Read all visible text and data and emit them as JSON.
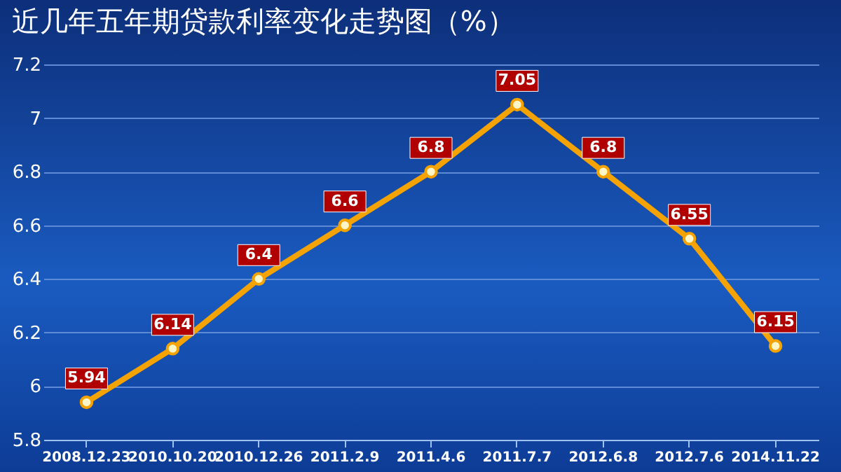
{
  "chart_data": {
    "type": "line",
    "title": "近几年五年期贷款利率变化走势图（%）",
    "categories": [
      "2008.12.23",
      "2010.10.20",
      "2010.12.26",
      "2011.2.9",
      "2011.4.6",
      "2011.7.7",
      "2012.6.8",
      "2012.7.6",
      "2014.11.22"
    ],
    "series": [
      {
        "color": "#f5a300",
        "values": [
          5.94,
          6.14,
          6.4,
          6.6,
          6.8,
          7.05,
          6.8,
          6.55,
          6.15
        ]
      }
    ],
    "ylim": [
      5.8,
      7.2
    ],
    "yticks": [
      5.8,
      6,
      6.2,
      6.4,
      6.6,
      6.8,
      7,
      7.2
    ],
    "grid": "y",
    "marker": "circle",
    "data_labels": true,
    "line_style": "solid"
  }
}
